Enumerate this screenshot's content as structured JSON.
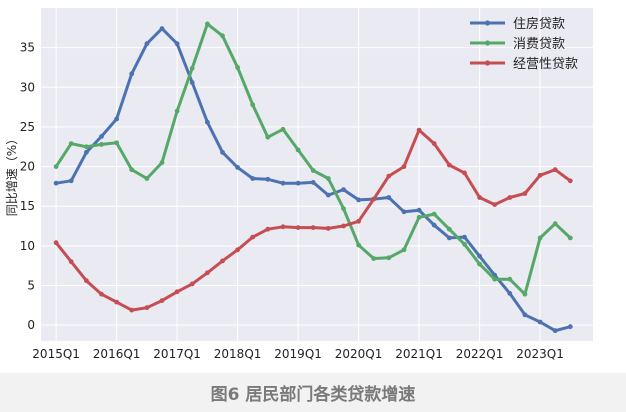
{
  "caption": "图6  居民部门各类贷款增速",
  "chart_data": {
    "type": "line",
    "title": "",
    "xlabel": "",
    "ylabel": "同比增速（%）",
    "ylim": [
      -2,
      40
    ],
    "xlim": [
      2014.75,
      2023.875
    ],
    "yticks": [
      0,
      5,
      10,
      15,
      20,
      25,
      30,
      35
    ],
    "xticks": [
      {
        "label": "2015Q1",
        "x": 2015.0
      },
      {
        "label": "2016Q1",
        "x": 2016.0
      },
      {
        "label": "2017Q1",
        "x": 2017.0
      },
      {
        "label": "2018Q1",
        "x": 2018.0
      },
      {
        "label": "2019Q1",
        "x": 2019.0
      },
      {
        "label": "2020Q1",
        "x": 2020.0
      },
      {
        "label": "2021Q1",
        "x": 2021.0
      },
      {
        "label": "2022Q1",
        "x": 2022.0
      },
      {
        "label": "2023Q1",
        "x": 2023.0
      }
    ],
    "grid": true,
    "legend_position": "top-right",
    "series": [
      {
        "name": "住房贷款",
        "color": "#4c72b0",
        "points": [
          [
            2015.0,
            17.9
          ],
          [
            2015.25,
            18.2
          ],
          [
            2015.5,
            21.8
          ],
          [
            2015.75,
            23.8
          ],
          [
            2016.0,
            26.0
          ],
          [
            2016.25,
            31.7
          ],
          [
            2016.5,
            35.5
          ],
          [
            2016.75,
            37.4
          ],
          [
            2017.0,
            35.5
          ],
          [
            2017.25,
            30.6
          ],
          [
            2017.5,
            25.6
          ],
          [
            2017.75,
            21.8
          ],
          [
            2018.0,
            19.9
          ],
          [
            2018.25,
            18.5
          ],
          [
            2018.5,
            18.4
          ],
          [
            2018.75,
            17.9
          ],
          [
            2019.0,
            17.9
          ],
          [
            2019.25,
            18.0
          ],
          [
            2019.5,
            16.4
          ],
          [
            2019.75,
            17.1
          ],
          [
            2020.0,
            15.8
          ],
          [
            2020.25,
            15.9
          ],
          [
            2020.5,
            16.1
          ],
          [
            2020.75,
            14.3
          ],
          [
            2021.0,
            14.5
          ],
          [
            2021.25,
            12.6
          ],
          [
            2021.5,
            11.0
          ],
          [
            2021.75,
            11.1
          ],
          [
            2022.0,
            8.7
          ],
          [
            2022.25,
            6.3
          ],
          [
            2022.5,
            4.0
          ],
          [
            2022.75,
            1.3
          ],
          [
            2023.0,
            0.4
          ],
          [
            2023.25,
            -0.7
          ],
          [
            2023.5,
            -0.2
          ]
        ]
      },
      {
        "name": "消费贷款",
        "color": "#55a868",
        "points": [
          [
            2015.0,
            20.0
          ],
          [
            2015.25,
            22.9
          ],
          [
            2015.5,
            22.5
          ],
          [
            2015.75,
            22.8
          ],
          [
            2016.0,
            23.0
          ],
          [
            2016.25,
            19.6
          ],
          [
            2016.5,
            18.5
          ],
          [
            2016.75,
            20.5
          ],
          [
            2017.0,
            27.0
          ],
          [
            2017.25,
            32.4
          ],
          [
            2017.5,
            38.0
          ],
          [
            2017.75,
            36.5
          ],
          [
            2018.0,
            32.5
          ],
          [
            2018.25,
            27.8
          ],
          [
            2018.5,
            23.7
          ],
          [
            2018.75,
            24.7
          ],
          [
            2019.0,
            22.1
          ],
          [
            2019.25,
            19.5
          ],
          [
            2019.5,
            18.5
          ],
          [
            2019.75,
            14.7
          ],
          [
            2020.0,
            10.1
          ],
          [
            2020.25,
            8.4
          ],
          [
            2020.5,
            8.5
          ],
          [
            2020.75,
            9.5
          ],
          [
            2021.0,
            13.6
          ],
          [
            2021.25,
            14.0
          ],
          [
            2021.5,
            12.1
          ],
          [
            2021.75,
            10.2
          ],
          [
            2022.0,
            7.7
          ],
          [
            2022.25,
            5.8
          ],
          [
            2022.5,
            5.8
          ],
          [
            2022.75,
            3.9
          ],
          [
            2023.0,
            11.0
          ],
          [
            2023.25,
            12.8
          ],
          [
            2023.5,
            11.0
          ]
        ]
      },
      {
        "name": "经营性贷款",
        "color": "#c44e52",
        "points": [
          [
            2015.0,
            10.4
          ],
          [
            2015.25,
            8.0
          ],
          [
            2015.5,
            5.6
          ],
          [
            2015.75,
            3.9
          ],
          [
            2016.0,
            2.9
          ],
          [
            2016.25,
            1.9
          ],
          [
            2016.5,
            2.2
          ],
          [
            2016.75,
            3.1
          ],
          [
            2017.0,
            4.2
          ],
          [
            2017.25,
            5.2
          ],
          [
            2017.5,
            6.6
          ],
          [
            2017.75,
            8.1
          ],
          [
            2018.0,
            9.5
          ],
          [
            2018.25,
            11.1
          ],
          [
            2018.5,
            12.1
          ],
          [
            2018.75,
            12.4
          ],
          [
            2019.0,
            12.3
          ],
          [
            2019.25,
            12.3
          ],
          [
            2019.5,
            12.2
          ],
          [
            2019.75,
            12.5
          ],
          [
            2020.0,
            13.1
          ],
          [
            2020.25,
            15.9
          ],
          [
            2020.5,
            18.8
          ],
          [
            2020.75,
            20.0
          ],
          [
            2021.0,
            24.6
          ],
          [
            2021.25,
            22.9
          ],
          [
            2021.5,
            20.2
          ],
          [
            2021.75,
            19.2
          ],
          [
            2022.0,
            16.1
          ],
          [
            2022.25,
            15.2
          ],
          [
            2022.5,
            16.1
          ],
          [
            2022.75,
            16.6
          ],
          [
            2023.0,
            18.9
          ],
          [
            2023.25,
            19.6
          ],
          [
            2023.5,
            18.2
          ]
        ]
      }
    ]
  }
}
